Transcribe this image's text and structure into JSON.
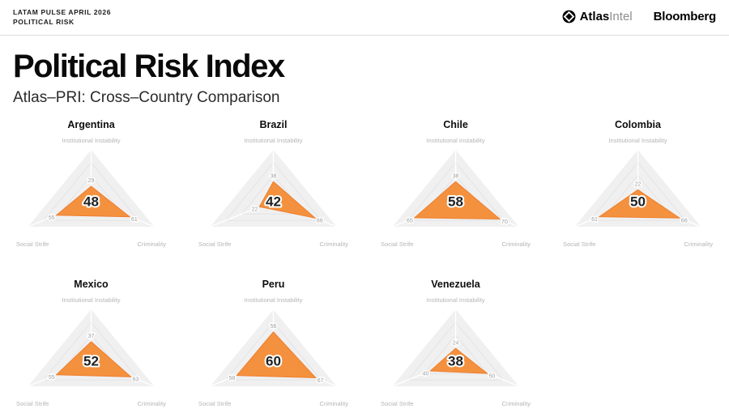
{
  "header": {
    "kicker_line1": "LATAM PULSE APRIL 2026",
    "kicker_line2": "POLITICAL RISK",
    "brand_atlas": "Atlas",
    "brand_intel": "Intel",
    "brand_bloomberg": "Bloomberg"
  },
  "title": "Political Risk Index",
  "subtitle": "Atlas–PRI: Cross–Country Comparison",
  "colors": {
    "accent_orange": "#F4913E",
    "orange_stroke": "#EE7F2D",
    "radar_bg": "#F0F0F1",
    "grid_line": "#E4E4E6",
    "spoke": "#FFFFFF",
    "axis_label": "#B5B5B5",
    "value_label": "#9B9B9B",
    "score_color": "#1F1F1F"
  },
  "chart_data": [
    {
      "type": "radar",
      "country": "Argentina",
      "score": 48,
      "axes": [
        "Institutional Instability",
        "Criminality",
        "Social Strife"
      ],
      "values": [
        29,
        61,
        55
      ],
      "range": [
        0,
        100
      ]
    },
    {
      "type": "radar",
      "country": "Brazil",
      "score": 42,
      "axes": [
        "Institutional Instability",
        "Criminality",
        "Social Strife"
      ],
      "values": [
        38,
        66,
        22
      ],
      "range": [
        0,
        100
      ]
    },
    {
      "type": "radar",
      "country": "Chile",
      "score": 58,
      "axes": [
        "Institutional Instability",
        "Criminality",
        "Social Strife"
      ],
      "values": [
        38,
        70,
        65
      ],
      "range": [
        0,
        100
      ]
    },
    {
      "type": "radar",
      "country": "Colombia",
      "score": 50,
      "axes": [
        "Institutional Instability",
        "Criminality",
        "Social Strife"
      ],
      "values": [
        22,
        66,
        61
      ],
      "range": [
        0,
        100
      ]
    },
    {
      "type": "radar",
      "country": "Mexico",
      "score": 52,
      "axes": [
        "Institutional Instability",
        "Criminality",
        "Social Strife"
      ],
      "values": [
        37,
        63,
        55
      ],
      "range": [
        0,
        100
      ]
    },
    {
      "type": "radar",
      "country": "Peru",
      "score": 60,
      "axes": [
        "Institutional Instability",
        "Criminality",
        "Social Strife"
      ],
      "values": [
        56,
        67,
        58
      ],
      "range": [
        0,
        100
      ]
    },
    {
      "type": "radar",
      "country": "Venezuela",
      "score": 38,
      "axes": [
        "Institutional Instability",
        "Criminality",
        "Social Strife"
      ],
      "values": [
        24,
        50,
        40
      ],
      "range": [
        0,
        100
      ]
    }
  ]
}
